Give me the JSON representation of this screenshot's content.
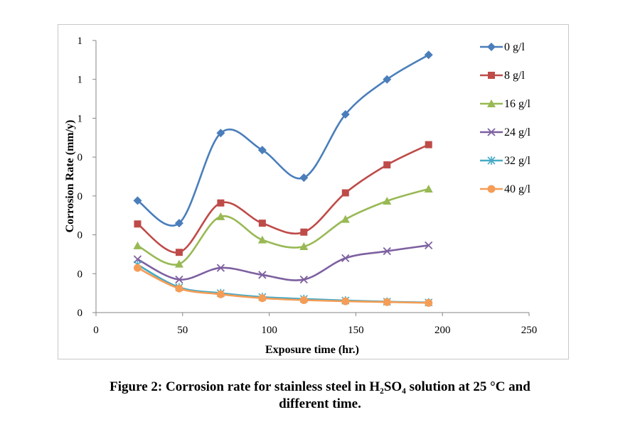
{
  "caption": {
    "line1": "Figure 2: Corrosion rate for stainless steel in H₂SO₄ solution at 25 °C and",
    "line2": "different time."
  },
  "chart_data": {
    "type": "line",
    "xlabel": "Exposure time (hr.)",
    "ylabel": "Corrosion Rate (mm/y)",
    "xlim": [
      0,
      250
    ],
    "ylim": [
      0,
      0.7
    ],
    "x_ticks": [
      0,
      50,
      100,
      150,
      200,
      250
    ],
    "y_ticks": [
      0,
      0.1,
      0.2,
      0.3,
      0.4,
      0.5,
      0.6,
      0.7
    ],
    "y_tick_labels": [
      "0",
      "0",
      "0",
      "0",
      "0",
      "1",
      "1",
      "1"
    ],
    "grid": false,
    "legend_position": "right",
    "x": [
      24,
      48,
      72,
      96,
      120,
      144,
      168,
      192
    ],
    "series": [
      {
        "name": "0 g/l",
        "color": "#4a7ebb",
        "marker": "diamond",
        "values": [
          0.288,
          0.23,
          0.462,
          0.418,
          0.347,
          0.51,
          0.6,
          0.663
        ]
      },
      {
        "name": "8 g/l",
        "color": "#be4b48",
        "marker": "square",
        "values": [
          0.228,
          0.155,
          0.282,
          0.23,
          0.207,
          0.308,
          0.38,
          0.432
        ]
      },
      {
        "name": "16 g/l",
        "color": "#98b954",
        "marker": "triangle",
        "values": [
          0.172,
          0.125,
          0.247,
          0.187,
          0.17,
          0.24,
          0.287,
          0.318
        ]
      },
      {
        "name": "24 g/l",
        "color": "#7d60a0",
        "marker": "x",
        "values": [
          0.137,
          0.085,
          0.115,
          0.097,
          0.085,
          0.14,
          0.158,
          0.173
        ]
      },
      {
        "name": "32 g/l",
        "color": "#46aac5",
        "marker": "star",
        "values": [
          0.123,
          0.065,
          0.05,
          0.04,
          0.035,
          0.031,
          0.028,
          0.026
        ]
      },
      {
        "name": "40 g/l",
        "color": "#f59d56",
        "marker": "circle",
        "values": [
          0.115,
          0.062,
          0.047,
          0.037,
          0.032,
          0.029,
          0.027,
          0.025
        ]
      }
    ]
  }
}
